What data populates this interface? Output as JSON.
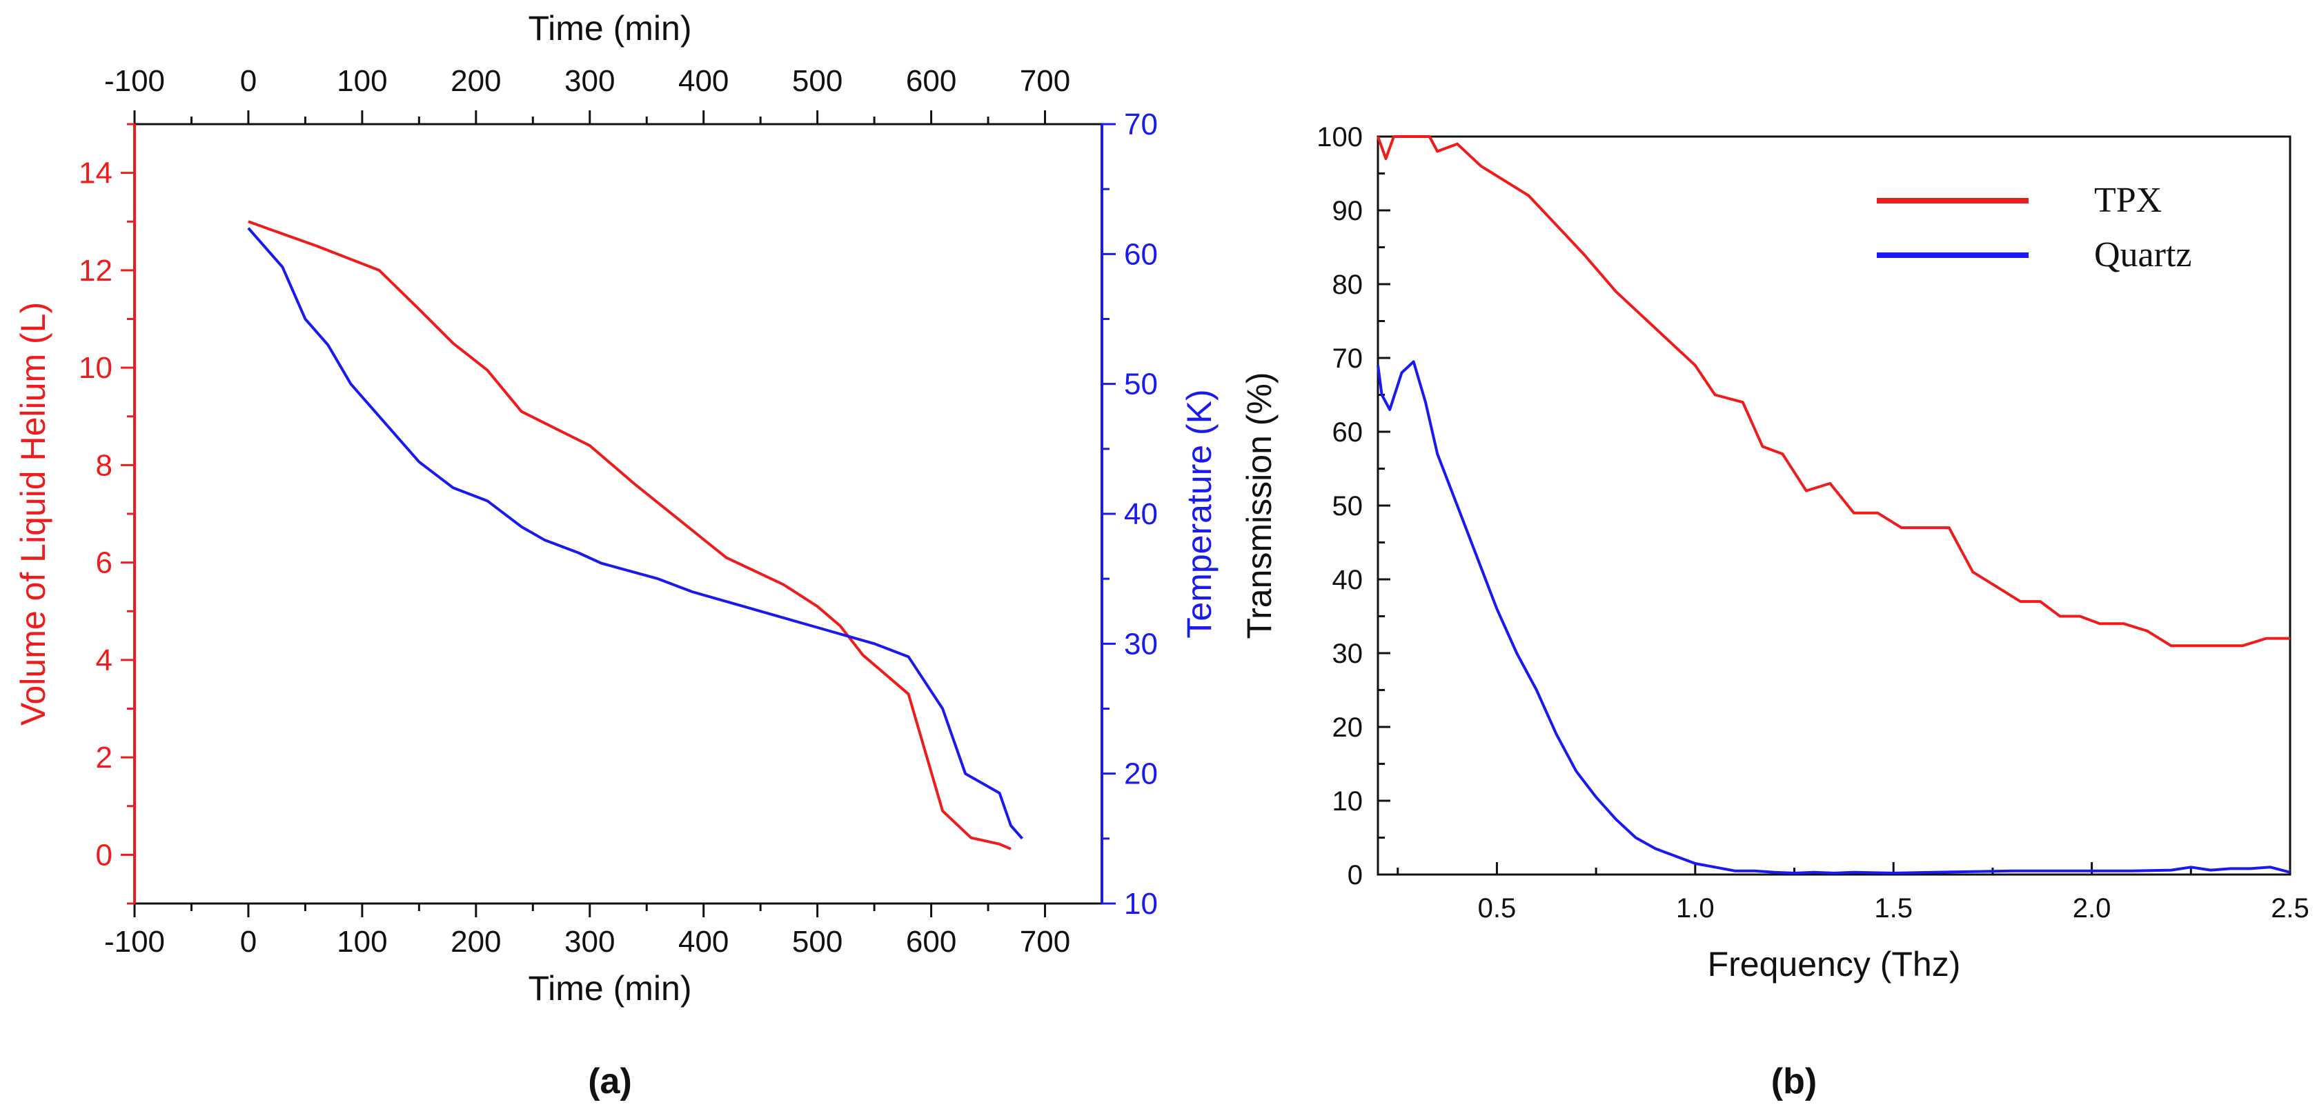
{
  "colors": {
    "red": "#ee1c1c",
    "blue": "#1a1aee",
    "black": "#111111"
  },
  "chart_data": [
    {
      "id": "a",
      "type": "line",
      "panel_label": "(a)",
      "xlabel": "Time (min)",
      "xlabel_top": "Time (min)",
      "ylabel_left": "Volume of Liquid Helium (L)",
      "ylabel_right": "Temperature (K)",
      "xlim": [
        -100,
        750
      ],
      "ylim_left": [
        -1,
        15
      ],
      "ylim_right": [
        10,
        70
      ],
      "xticks": [
        -100,
        0,
        100,
        200,
        300,
        400,
        500,
        600,
        700
      ],
      "yticks_left": [
        0,
        2,
        4,
        6,
        8,
        10,
        12,
        14
      ],
      "yticks_right": [
        10,
        20,
        30,
        40,
        50,
        60,
        70
      ],
      "series": [
        {
          "name": "Volume of Liquid Helium",
          "axis": "left",
          "color": "#ee1c1c",
          "x": [
            0,
            60,
            115,
            150,
            180,
            210,
            240,
            270,
            300,
            340,
            380,
            420,
            470,
            500,
            520,
            540,
            580,
            610,
            635,
            660,
            670
          ],
          "y": [
            13.0,
            12.5,
            12.0,
            11.2,
            10.5,
            9.95,
            9.1,
            8.75,
            8.4,
            7.6,
            6.85,
            6.1,
            5.55,
            5.1,
            4.7,
            4.1,
            3.3,
            0.9,
            0.35,
            0.22,
            0.12
          ]
        },
        {
          "name": "Temperature",
          "axis": "right",
          "color": "#1a1aee",
          "x": [
            0,
            30,
            50,
            70,
            90,
            120,
            150,
            180,
            210,
            240,
            260,
            290,
            310,
            360,
            390,
            430,
            470,
            510,
            550,
            580,
            610,
            630,
            660,
            670,
            680
          ],
          "y": [
            62.0,
            59.0,
            55.0,
            53.0,
            50.0,
            47.0,
            44.0,
            42.0,
            41.0,
            39.0,
            38.0,
            37.0,
            36.2,
            35.0,
            34.0,
            33.0,
            32.0,
            31.0,
            30.0,
            29.0,
            25.0,
            20.0,
            18.5,
            16.0,
            15.0
          ]
        }
      ]
    },
    {
      "id": "b",
      "type": "line",
      "panel_label": "(b)",
      "xlabel": "Frequency (Thz)",
      "ylabel": "Transmission (%)",
      "xlim": [
        0.2,
        2.5
      ],
      "ylim": [
        0,
        100
      ],
      "xticks": [
        0.5,
        1.0,
        1.5,
        2.0,
        2.5
      ],
      "xtick_labels": [
        "0.5",
        "1.0",
        "1.5",
        "2.0",
        "2.5"
      ],
      "yticks": [
        0,
        10,
        20,
        30,
        40,
        50,
        60,
        70,
        80,
        90,
        100
      ],
      "legend": {
        "placement": "top-right",
        "entries": [
          "TPX",
          "Quartz"
        ]
      },
      "series": [
        {
          "name": "TPX",
          "color": "#ee1c1c",
          "x": [
            0.2,
            0.22,
            0.24,
            0.27,
            0.3,
            0.33,
            0.35,
            0.4,
            0.46,
            0.52,
            0.58,
            0.65,
            0.72,
            0.8,
            0.88,
            0.94,
            1.0,
            1.05,
            1.12,
            1.17,
            1.22,
            1.28,
            1.34,
            1.4,
            1.46,
            1.52,
            1.58,
            1.64,
            1.7,
            1.76,
            1.82,
            1.87,
            1.92,
            1.97,
            2.02,
            2.08,
            2.14,
            2.2,
            2.26,
            2.32,
            2.38,
            2.44,
            2.5
          ],
          "y": [
            100,
            97,
            100,
            100,
            100,
            100,
            98,
            99,
            96,
            94,
            92,
            88,
            84,
            79,
            75,
            72,
            69,
            65,
            64,
            58,
            57,
            52,
            53,
            49,
            49,
            47,
            47,
            47,
            41,
            39,
            37,
            37,
            35,
            35,
            34,
            34,
            33,
            31,
            31,
            31,
            31,
            32,
            32
          ]
        },
        {
          "name": "Quartz",
          "color": "#1a1aee",
          "x": [
            0.2,
            0.21,
            0.23,
            0.26,
            0.29,
            0.32,
            0.35,
            0.4,
            0.45,
            0.5,
            0.55,
            0.6,
            0.65,
            0.7,
            0.75,
            0.8,
            0.85,
            0.9,
            0.95,
            1.0,
            1.05,
            1.1,
            1.15,
            1.2,
            1.25,
            1.3,
            1.35,
            1.4,
            1.5,
            1.6,
            1.7,
            1.8,
            1.9,
            2.0,
            2.1,
            2.2,
            2.25,
            2.3,
            2.35,
            2.4,
            2.45,
            2.5
          ],
          "y": [
            69,
            65,
            63,
            68,
            69.5,
            64,
            57,
            50,
            43,
            36,
            30,
            25,
            19,
            14,
            10.5,
            7.5,
            5,
            3.5,
            2.5,
            1.5,
            1,
            0.5,
            0.5,
            0.3,
            0.2,
            0.3,
            0.2,
            0.3,
            0.2,
            0.3,
            0.4,
            0.5,
            0.5,
            0.5,
            0.5,
            0.6,
            1.0,
            0.6,
            0.8,
            0.8,
            1.0,
            0.3
          ]
        }
      ]
    }
  ]
}
